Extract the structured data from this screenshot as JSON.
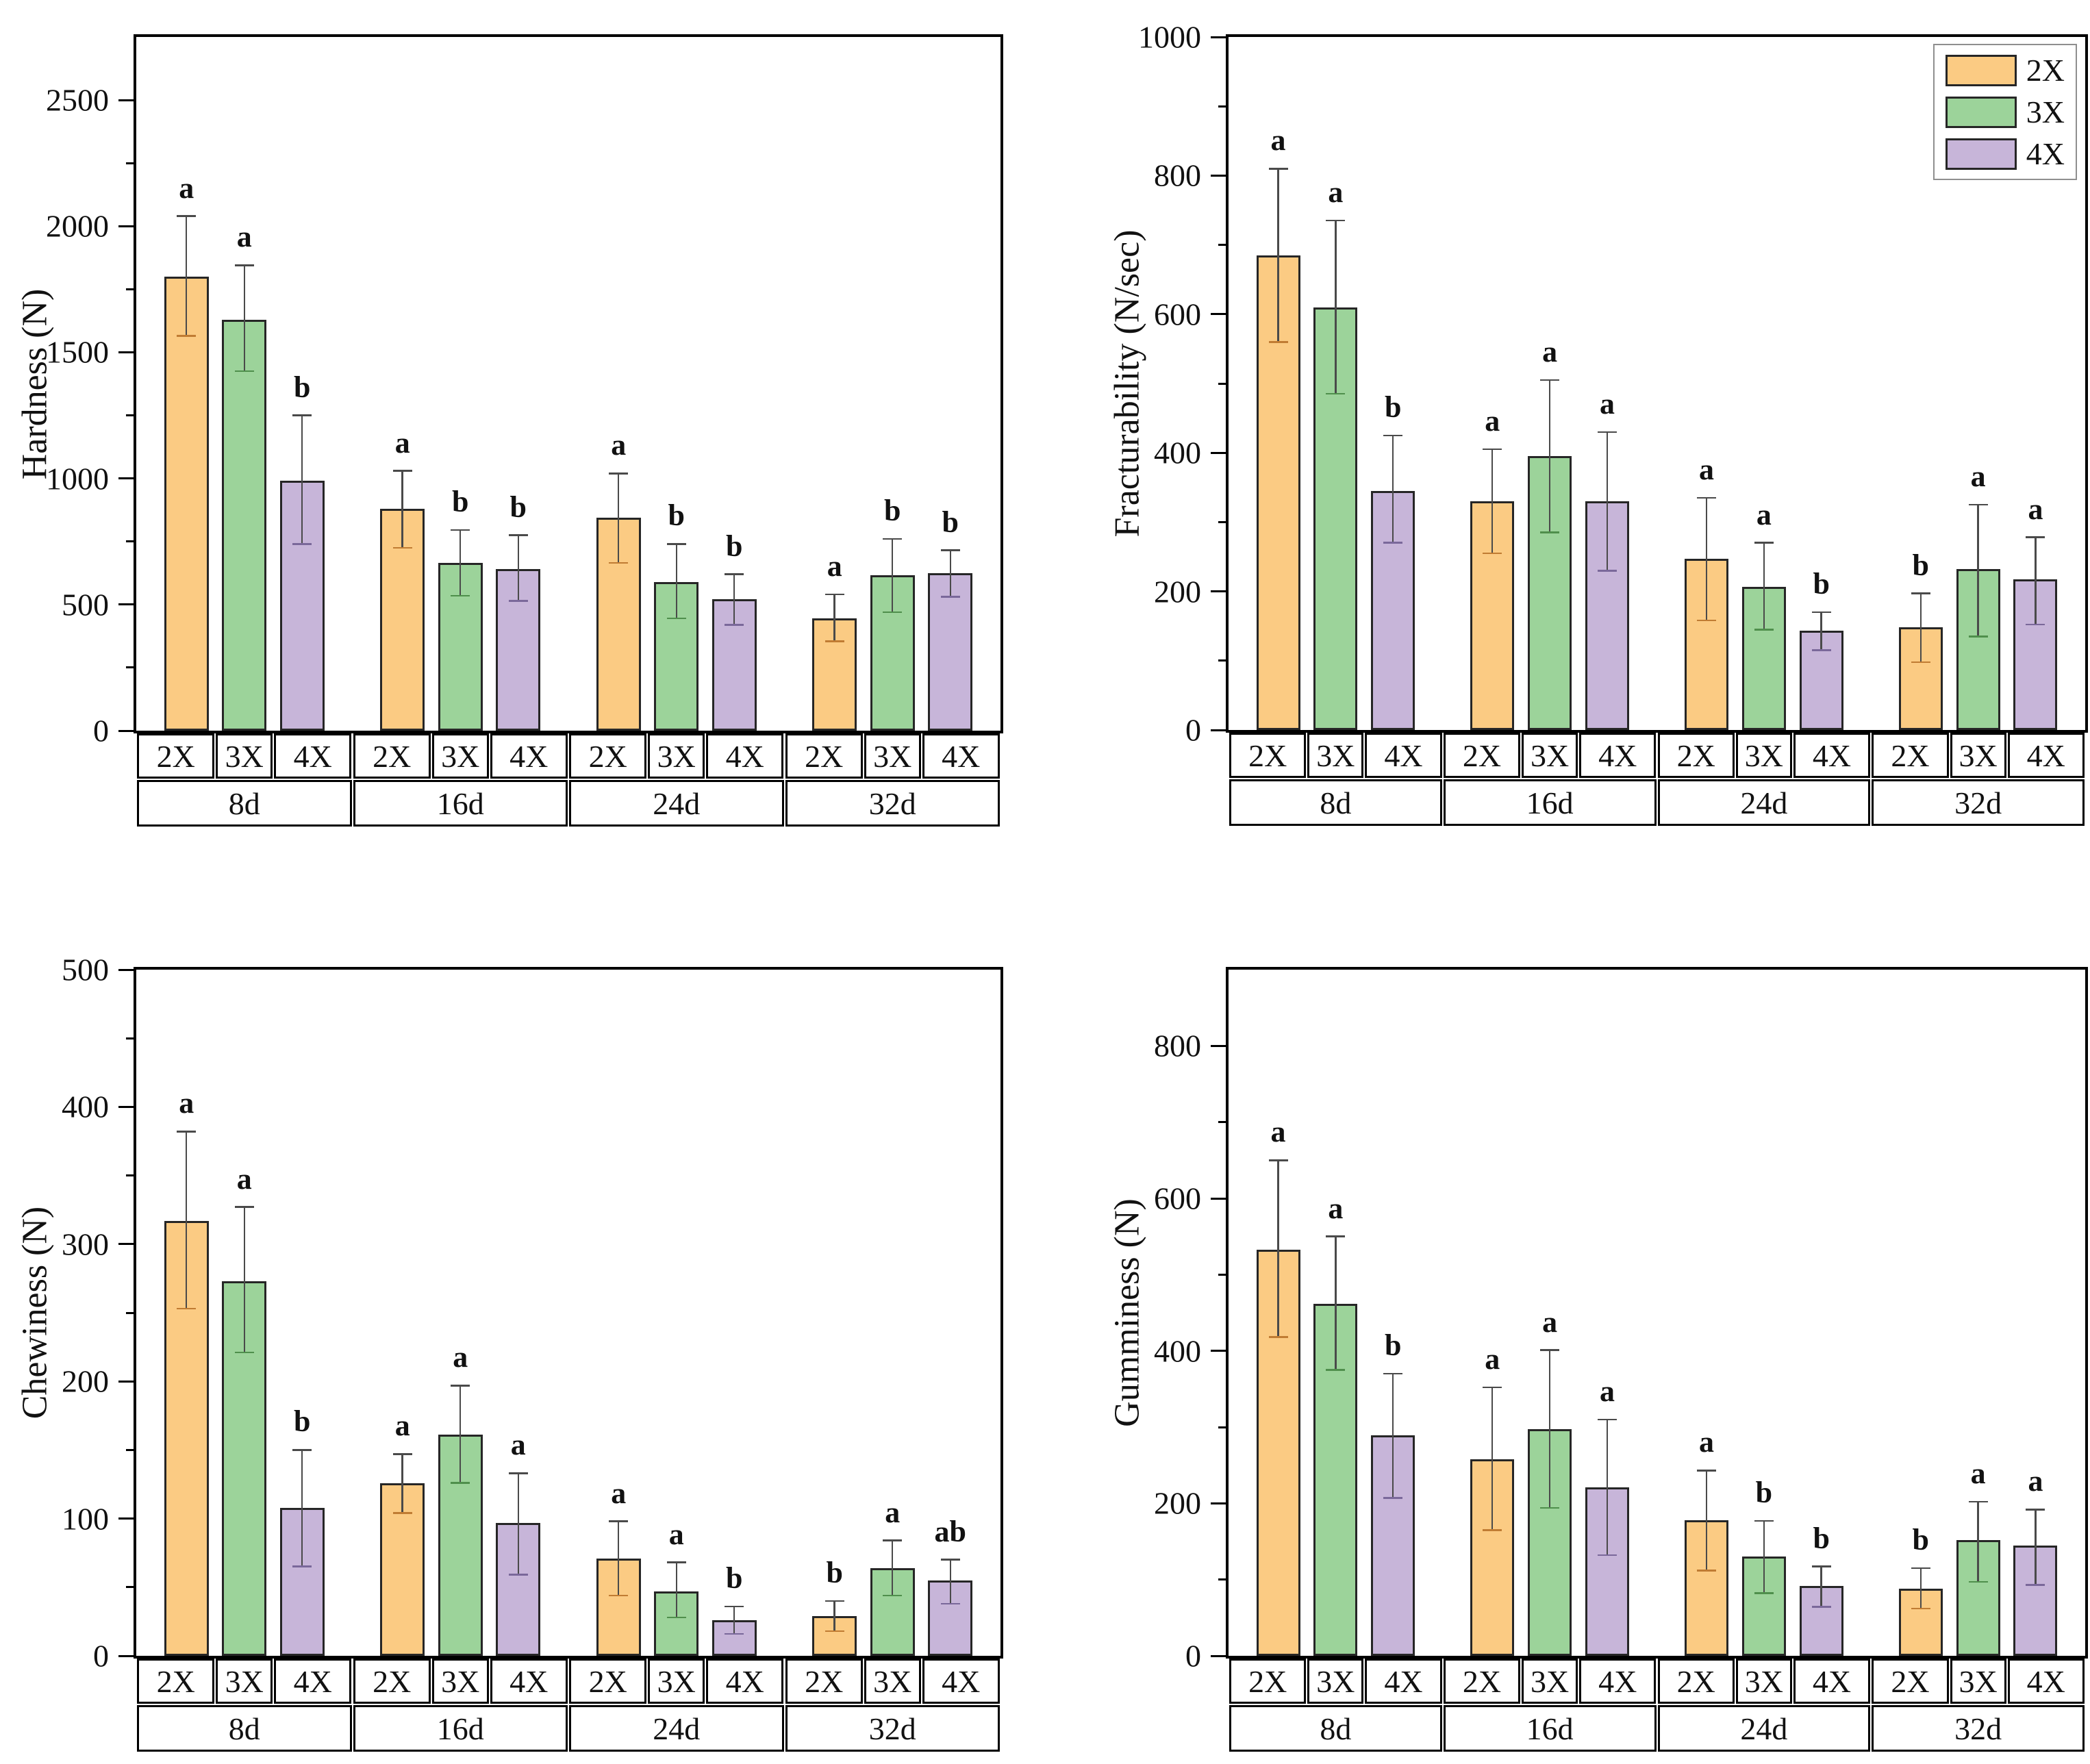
{
  "figure": {
    "background": "#FFFFFF"
  },
  "legend": {
    "position": "top-right-of-fracturability-panel",
    "items": [
      {
        "label": "2X",
        "color": "#FBCB83"
      },
      {
        "label": "3X",
        "color": "#9CD39A"
      },
      {
        "label": "4X",
        "color": "#C7B5D9"
      }
    ]
  },
  "series_style": {
    "2X": {
      "fill": "#FBCB83",
      "dark": "#C07C33"
    },
    "3X": {
      "fill": "#9CD39A",
      "dark": "#4F8F4C"
    },
    "4X": {
      "fill": "#C7B5D9",
      "dark": "#7A689A"
    },
    "bar_border_color": "#262626",
    "error_bar_color": "#4A4A4A",
    "axis_color": "#000000"
  },
  "chart_data": [
    {
      "type": "bar",
      "ylabel": "Hardness (N)",
      "ylim": [
        0,
        2750
      ],
      "yticks": [
        0,
        500,
        1000,
        1500,
        2000,
        2500
      ],
      "minor_ticks": [
        250,
        750,
        1250,
        1750,
        2250
      ],
      "grid": false,
      "legend_position": "none",
      "show_legend": false,
      "groups": [
        "8d",
        "16d",
        "24d",
        "32d"
      ],
      "series": [
        "2X",
        "3X",
        "4X"
      ],
      "values": [
        [
          1800,
          1630,
          990
        ],
        [
          880,
          665,
          640
        ],
        [
          845,
          590,
          520
        ],
        [
          445,
          615,
          625
        ]
      ],
      "err_low": [
        [
          1565,
          1425,
          740
        ],
        [
          725,
          535,
          515
        ],
        [
          665,
          445,
          420
        ],
        [
          355,
          470,
          530
        ]
      ],
      "err_high": [
        [
          2040,
          1845,
          1250
        ],
        [
          1030,
          795,
          775
        ],
        [
          1020,
          740,
          620
        ],
        [
          540,
          760,
          715
        ]
      ],
      "letters": [
        [
          "a",
          "a",
          "b"
        ],
        [
          "a",
          "b",
          "b"
        ],
        [
          "a",
          "b",
          "b"
        ],
        [
          "a",
          "b",
          "b"
        ]
      ]
    },
    {
      "type": "bar",
      "ylabel": "Fracturability (N/sec)",
      "ylim": [
        0,
        1000
      ],
      "yticks": [
        0,
        200,
        400,
        600,
        800,
        1000
      ],
      "minor_ticks": [
        100,
        300,
        500,
        700,
        900
      ],
      "grid": false,
      "legend_position": "top-right",
      "show_legend": true,
      "groups": [
        "8d",
        "16d",
        "24d",
        "32d"
      ],
      "series": [
        "2X",
        "3X",
        "4X"
      ],
      "values": [
        [
          685,
          610,
          345
        ],
        [
          330,
          395,
          330
        ],
        [
          247,
          207,
          143
        ],
        [
          148,
          232,
          217
        ]
      ],
      "err_low": [
        [
          560,
          485,
          270
        ],
        [
          255,
          285,
          230
        ],
        [
          158,
          145,
          115
        ],
        [
          98,
          135,
          152
        ]
      ],
      "err_high": [
        [
          810,
          735,
          425
        ],
        [
          405,
          505,
          430
        ],
        [
          335,
          270,
          170
        ],
        [
          197,
          325,
          278
        ]
      ],
      "letters": [
        [
          "a",
          "a",
          "b"
        ],
        [
          "a",
          "a",
          "a"
        ],
        [
          "a",
          "a",
          "b"
        ],
        [
          "b",
          "a",
          "a"
        ]
      ]
    },
    {
      "type": "bar",
      "ylabel": "Chewiness (N)",
      "ylim": [
        0,
        500
      ],
      "yticks": [
        0,
        100,
        200,
        300,
        400,
        500
      ],
      "minor_ticks": [
        50,
        150,
        250,
        350,
        450
      ],
      "grid": false,
      "legend_position": "none",
      "show_legend": false,
      "groups": [
        "8d",
        "16d",
        "24d",
        "32d"
      ],
      "series": [
        "2X",
        "3X",
        "4X"
      ],
      "values": [
        [
          317,
          273,
          108
        ],
        [
          126,
          161,
          97
        ],
        [
          71,
          47,
          26
        ],
        [
          29,
          64,
          55
        ]
      ],
      "err_low": [
        [
          253,
          221,
          65
        ],
        [
          104,
          126,
          59
        ],
        [
          44,
          28,
          16
        ],
        [
          18,
          44,
          38
        ]
      ],
      "err_high": [
        [
          382,
          327,
          150
        ],
        [
          147,
          197,
          133
        ],
        [
          98,
          68,
          36
        ],
        [
          40,
          84,
          70
        ]
      ],
      "letters": [
        [
          "a",
          "a",
          "b"
        ],
        [
          "a",
          "a",
          "a"
        ],
        [
          "a",
          "a",
          "b"
        ],
        [
          "b",
          "a",
          "ab"
        ]
      ]
    },
    {
      "type": "bar",
      "ylabel": "Gumminess (N)",
      "ylim": [
        0,
        900
      ],
      "yticks": [
        0,
        200,
        400,
        600,
        800
      ],
      "minor_ticks": [
        100,
        300,
        500,
        700
      ],
      "grid": false,
      "legend_position": "none",
      "show_legend": false,
      "groups": [
        "8d",
        "16d",
        "24d",
        "32d"
      ],
      "series": [
        "2X",
        "3X",
        "4X"
      ],
      "values": [
        [
          533,
          462,
          289
        ],
        [
          258,
          297,
          221
        ],
        [
          178,
          130,
          92
        ],
        [
          88,
          152,
          145
        ]
      ],
      "err_low": [
        [
          418,
          375,
          207
        ],
        [
          165,
          194,
          132
        ],
        [
          112,
          82,
          64
        ],
        [
          62,
          97,
          93
        ]
      ],
      "err_high": [
        [
          650,
          550,
          370
        ],
        [
          352,
          401,
          310
        ],
        [
          243,
          177,
          117
        ],
        [
          115,
          202,
          192
        ]
      ],
      "letters": [
        [
          "a",
          "a",
          "b"
        ],
        [
          "a",
          "a",
          "a"
        ],
        [
          "a",
          "b",
          "b"
        ],
        [
          "b",
          "a",
          "a"
        ]
      ]
    }
  ]
}
